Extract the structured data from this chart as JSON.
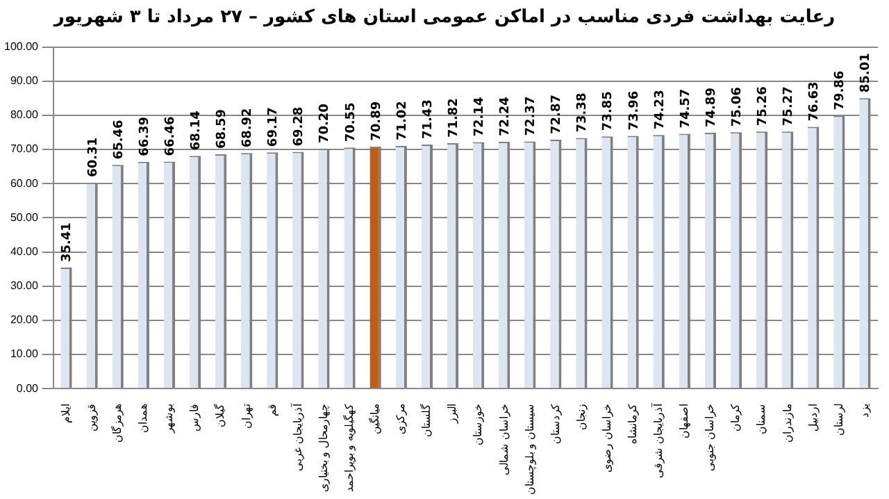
{
  "chart_data": {
    "type": "bar",
    "title": "رعایت بهداشت فردی مناسب در اماکن عمومی استان های کشور – ۲۷ مرداد تا ۳ شهریور",
    "categories": [
      "ایلام",
      "قزوین",
      "هرمزگان",
      "همدان",
      "بوشهر",
      "فارس",
      "گیلان",
      "تهران",
      "قم",
      "آذربایجان غربی",
      "چهارمحال و بختیاری",
      "کهگیلویه و بویراحمد",
      "میانگین",
      "مرکزی",
      "گلستان",
      "البرز",
      "خوزستان",
      "خراسان شمالی",
      "سیستان و بلوچستان",
      "کردستان",
      "زنجان",
      "خراسان رضوی",
      "کرمانشاه",
      "آذربایجان شرقی",
      "اصفهان",
      "خراسان جنوبی",
      "کرمان",
      "سمنان",
      "مازندران",
      "اردبیل",
      "لرستان",
      "یزد"
    ],
    "values": [
      35.41,
      60.31,
      65.46,
      66.39,
      66.46,
      68.14,
      68.59,
      68.92,
      69.17,
      69.28,
      70.2,
      70.55,
      70.89,
      71.02,
      71.43,
      71.82,
      72.14,
      72.24,
      72.37,
      72.87,
      73.38,
      73.85,
      73.96,
      74.23,
      74.57,
      74.89,
      75.06,
      75.26,
      75.27,
      76.63,
      79.86,
      85.01
    ],
    "value_labels": [
      "35.41",
      "60.31",
      "65.46",
      "66.39",
      "66.46",
      "68.14",
      "68.59",
      "68.92",
      "69.17",
      "69.28",
      "70.20",
      "70.55",
      "70.89",
      "71.02",
      "71.43",
      "71.82",
      "72.14",
      "72.24",
      "72.37",
      "72.87",
      "73.38",
      "73.85",
      "73.96",
      "74.23",
      "74.57",
      "74.89",
      "75.06",
      "75.26",
      "75.27",
      "76.63",
      "79.86",
      "85.01"
    ],
    "colors": [
      "#dce6f2",
      "#dce6f2",
      "#dce6f2",
      "#dce6f2",
      "#dce6f2",
      "#dce6f2",
      "#dce6f2",
      "#dce6f2",
      "#dce6f2",
      "#dce6f2",
      "#dce6f2",
      "#dce6f2",
      "#c55a11",
      "#dce6f2",
      "#dce6f2",
      "#dce6f2",
      "#dce6f2",
      "#dce6f2",
      "#dce6f2",
      "#dce6f2",
      "#dce6f2",
      "#dce6f2",
      "#dce6f2",
      "#dce6f2",
      "#dce6f2",
      "#dce6f2",
      "#dce6f2",
      "#dce6f2",
      "#dce6f2",
      "#dce6f2",
      "#dce6f2",
      "#dce6f2"
    ],
    "ylim": [
      0,
      100
    ],
    "yticks": [
      {
        "value": 0,
        "label": "0.00"
      },
      {
        "value": 10,
        "label": "10.00"
      },
      {
        "value": 20,
        "label": "20.00"
      },
      {
        "value": 30,
        "label": "30.00"
      },
      {
        "value": 40,
        "label": "40.00"
      },
      {
        "value": 50,
        "label": "50.00"
      },
      {
        "value": 60,
        "label": "60.00"
      },
      {
        "value": 70,
        "label": "70.00"
      },
      {
        "value": 80,
        "label": "80.00"
      },
      {
        "value": 90,
        "label": "90.00"
      },
      {
        "value": 100,
        "label": "100.00"
      }
    ],
    "grid": "y",
    "legend": false
  }
}
